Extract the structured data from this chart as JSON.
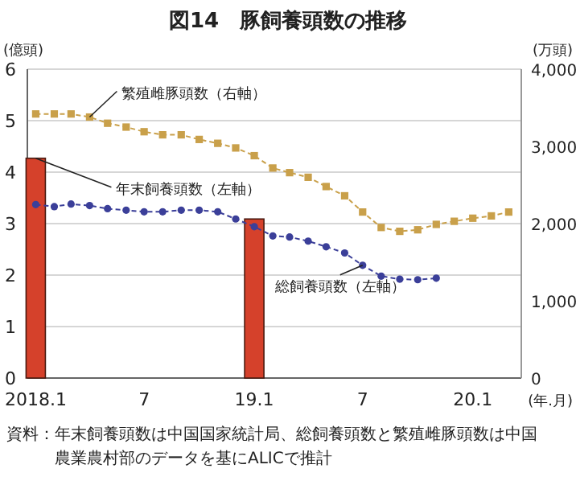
{
  "chart_data": {
    "type": "line",
    "title": "図14　豚飼養頭数の推移",
    "ylabel": "(億頭)",
    "y2label": "(万頭)",
    "xlabel": "(年.月)",
    "xlim": [
      "2017-12-18",
      "2020-03-22"
    ],
    "xticks": [
      {
        "value": "2018-01",
        "label": "2018.1"
      },
      {
        "value": "2018-07",
        "label": "7"
      },
      {
        "value": "2019-01",
        "label": "19.1"
      },
      {
        "value": "2019-07",
        "label": "7"
      },
      {
        "value": "2020-01",
        "label": "20.1"
      }
    ],
    "ylim": [
      0,
      6
    ],
    "yticks": [
      0,
      1,
      2,
      3,
      4,
      5,
      6
    ],
    "y2lim": [
      0,
      4000
    ],
    "y2ticks": [
      0,
      {
        "value": 1000,
        "label": "1,000"
      },
      {
        "value": 2000,
        "label": "2,000"
      },
      {
        "value": 3000,
        "label": "3,000"
      },
      {
        "value": 4000,
        "label": "4,000"
      }
    ],
    "grid": "y",
    "series": [
      {
        "name": "年末飼養頭数（左軸）",
        "type": "bar",
        "color": "#d5412b",
        "x": [
          "2018-01",
          "2019-01"
        ],
        "values": [
          4.27,
          3.09
        ]
      },
      {
        "name": "繁殖雌豚頭数（右軸）",
        "axis": "y2",
        "color": "#c9a04a",
        "marker": "square",
        "line_style": "dashed",
        "x": [
          "2018-01",
          "2018-02",
          "2018-03",
          "2018-04",
          "2018-05",
          "2018-06",
          "2018-07",
          "2018-08",
          "2018-09",
          "2018-10",
          "2018-11",
          "2018-12",
          "2019-01",
          "2019-02",
          "2019-03",
          "2019-04",
          "2019-05",
          "2019-06",
          "2019-07",
          "2019-08",
          "2019-09",
          "2019-10",
          "2019-11",
          "2019-12",
          "2020-01",
          "2020-02",
          "2020-03"
        ],
        "values": [
          3420,
          3420,
          3420,
          3380,
          3300,
          3250,
          3190,
          3150,
          3150,
          3090,
          3040,
          2980,
          2880,
          2720,
          2660,
          2600,
          2480,
          2360,
          2150,
          1950,
          1900,
          1920,
          1990,
          2030,
          2070,
          2100,
          2150
        ]
      },
      {
        "name": "総飼養頭数（左軸）",
        "color": "#3b3f99",
        "marker": "circle",
        "line_style": "dashed",
        "x": [
          "2018-01",
          "2018-02",
          "2018-03",
          "2018-04",
          "2018-05",
          "2018-06",
          "2018-07",
          "2018-08",
          "2018-09",
          "2018-10",
          "2018-11",
          "2018-12",
          "2019-01",
          "2019-02",
          "2019-03",
          "2019-04",
          "2019-05",
          "2019-06",
          "2019-07",
          "2019-08",
          "2019-09",
          "2019-10",
          "2019-11"
        ],
        "values": [
          3.37,
          3.33,
          3.38,
          3.35,
          3.29,
          3.26,
          3.23,
          3.23,
          3.26,
          3.26,
          3.23,
          3.09,
          2.94,
          2.76,
          2.74,
          2.66,
          2.55,
          2.43,
          2.19,
          1.98,
          1.92,
          1.91,
          1.94
        ]
      }
    ],
    "annotations": [
      "資料：年末飼養頭数は中国国家統計局、総飼養頭数と繁殖雌豚頭数は中国農業農村部のデータを基にALICで推計"
    ]
  }
}
